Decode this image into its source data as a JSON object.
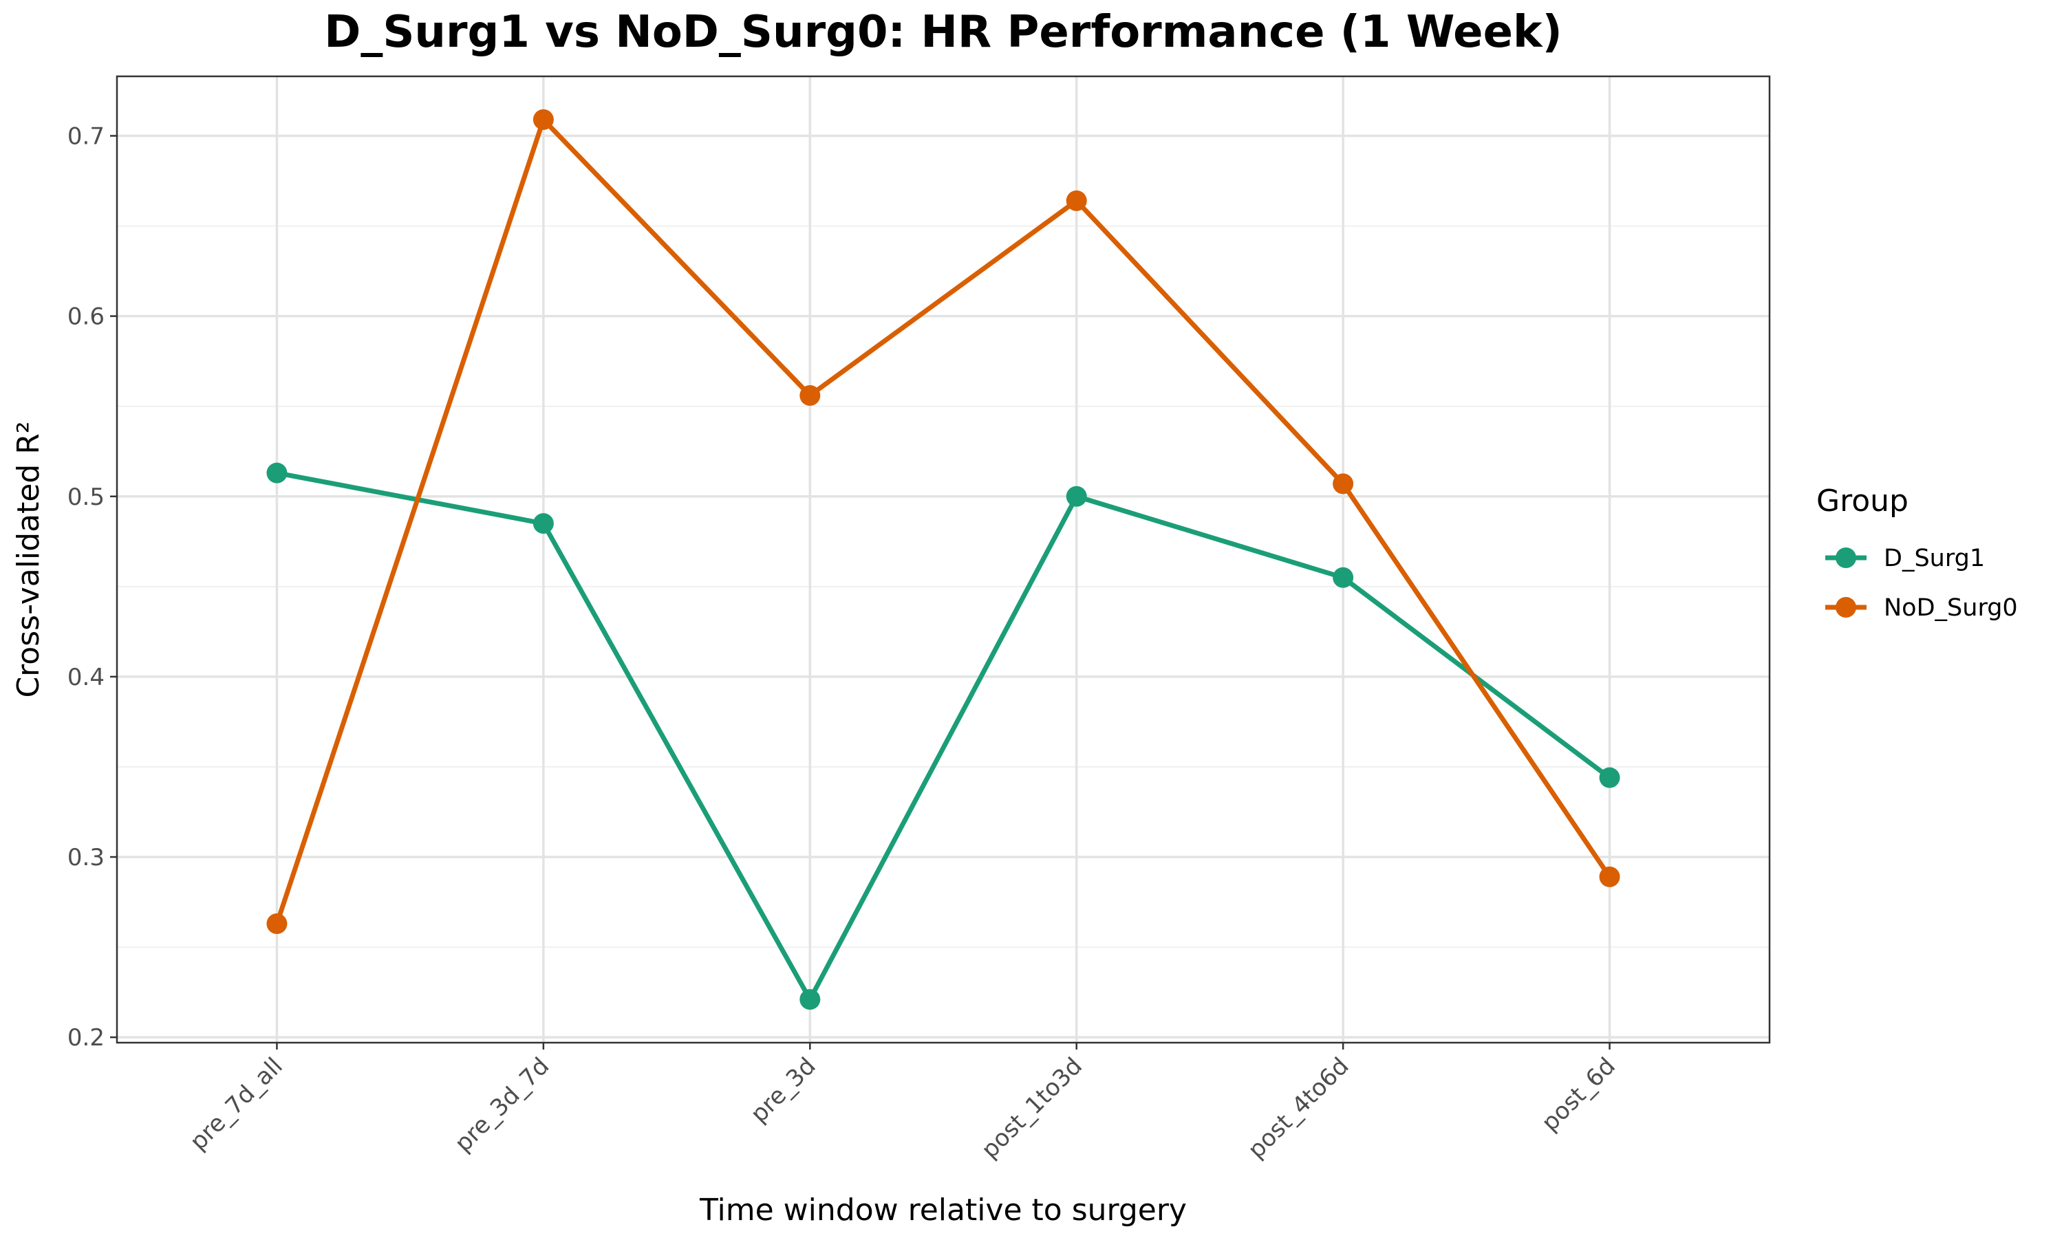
{
  "chart_data": {
    "type": "line",
    "title": "D_Surg1 vs NoD_Surg0: HR Performance (1 Week)",
    "xlabel": "Time window relative to surgery",
    "ylabel": "Cross-validated R²",
    "categories": [
      "pre_7d_all",
      "pre_3d_7d",
      "pre_3d",
      "post_1to3d",
      "post_4to6d",
      "post_6d"
    ],
    "ylim": [
      0.197,
      0.733
    ],
    "yticks": [
      0.2,
      0.3,
      0.4,
      0.5,
      0.6,
      0.7
    ],
    "ytick_labels": [
      "0.2",
      "0.3",
      "0.4",
      "0.5",
      "0.6",
      "0.7"
    ],
    "grid": true,
    "legend_title": "Group",
    "legend_position": "right",
    "series": [
      {
        "name": "D_Surg1",
        "color": "#1b9e77",
        "values": [
          0.513,
          0.485,
          0.221,
          0.5,
          0.455,
          0.344
        ]
      },
      {
        "name": "NoD_Surg0",
        "color": "#d95f02",
        "values": [
          0.263,
          0.709,
          0.556,
          0.664,
          0.507,
          0.289
        ]
      }
    ]
  }
}
